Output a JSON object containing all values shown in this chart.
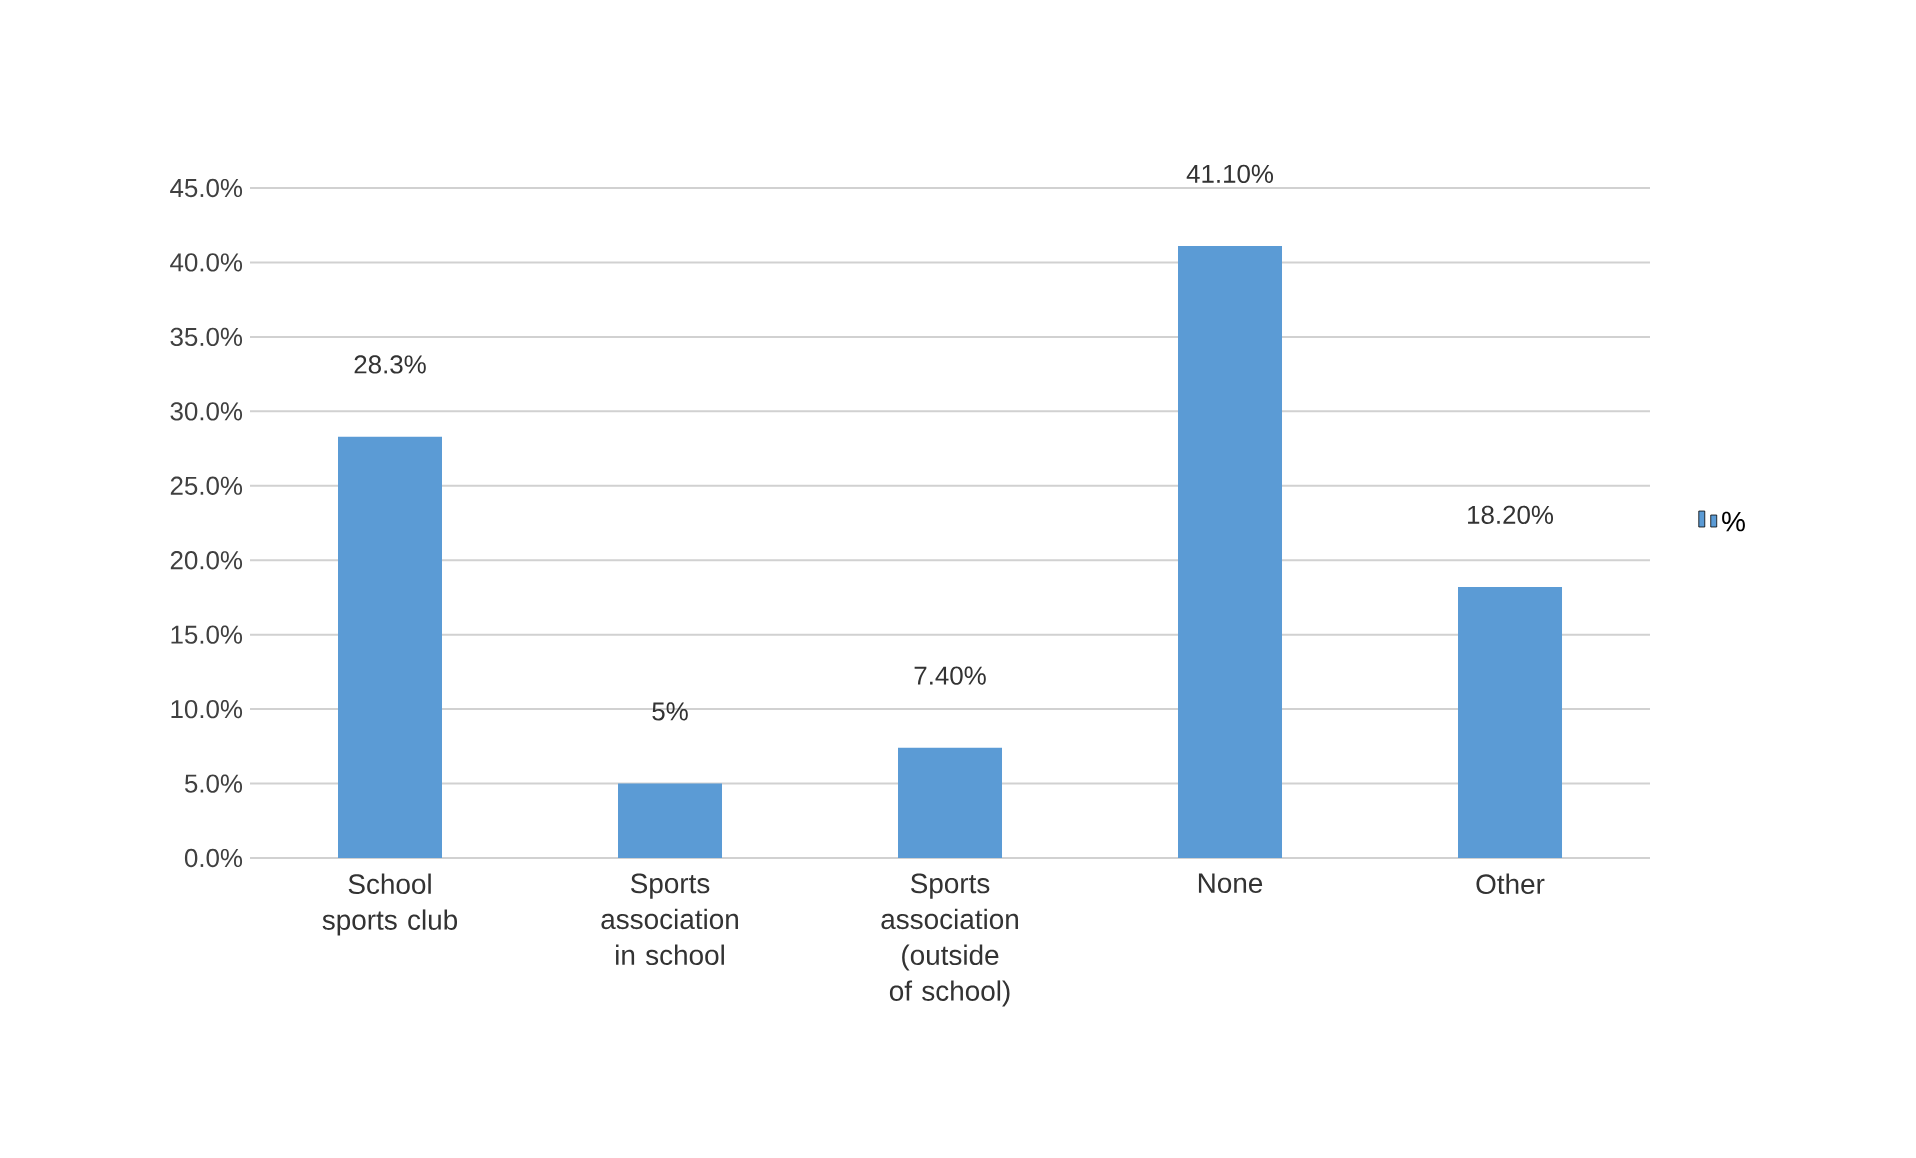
{
  "chart_data": {
    "type": "bar",
    "categories": [
      "School sports club",
      "Sports association in school",
      "Sports association (outside of school)",
      "None",
      "Other"
    ],
    "series": [
      {
        "name": "%",
        "color": "#5b9bd5",
        "values": [
          28.3,
          5,
          7.4,
          41.1,
          18.2
        ],
        "value_labels": [
          "28.3%",
          "5%",
          "7.40%",
          "41.10%",
          "18.20%"
        ]
      }
    ],
    "ylim": [
      0,
      45
    ],
    "yticks": [
      {
        "value": 0,
        "label": "0.0%"
      },
      {
        "value": 5,
        "label": "5.0%"
      },
      {
        "value": 10,
        "label": "10.0%"
      },
      {
        "value": 15,
        "label": "15.0%"
      },
      {
        "value": 20,
        "label": "20.0%"
      },
      {
        "value": 25,
        "label": "25.0%"
      },
      {
        "value": 30,
        "label": "30.0%"
      },
      {
        "value": 35,
        "label": "35.0%"
      },
      {
        "value": 40,
        "label": "40.0%"
      },
      {
        "value": 45,
        "label": "45.0%"
      }
    ],
    "grid": "y",
    "legend": "right"
  }
}
